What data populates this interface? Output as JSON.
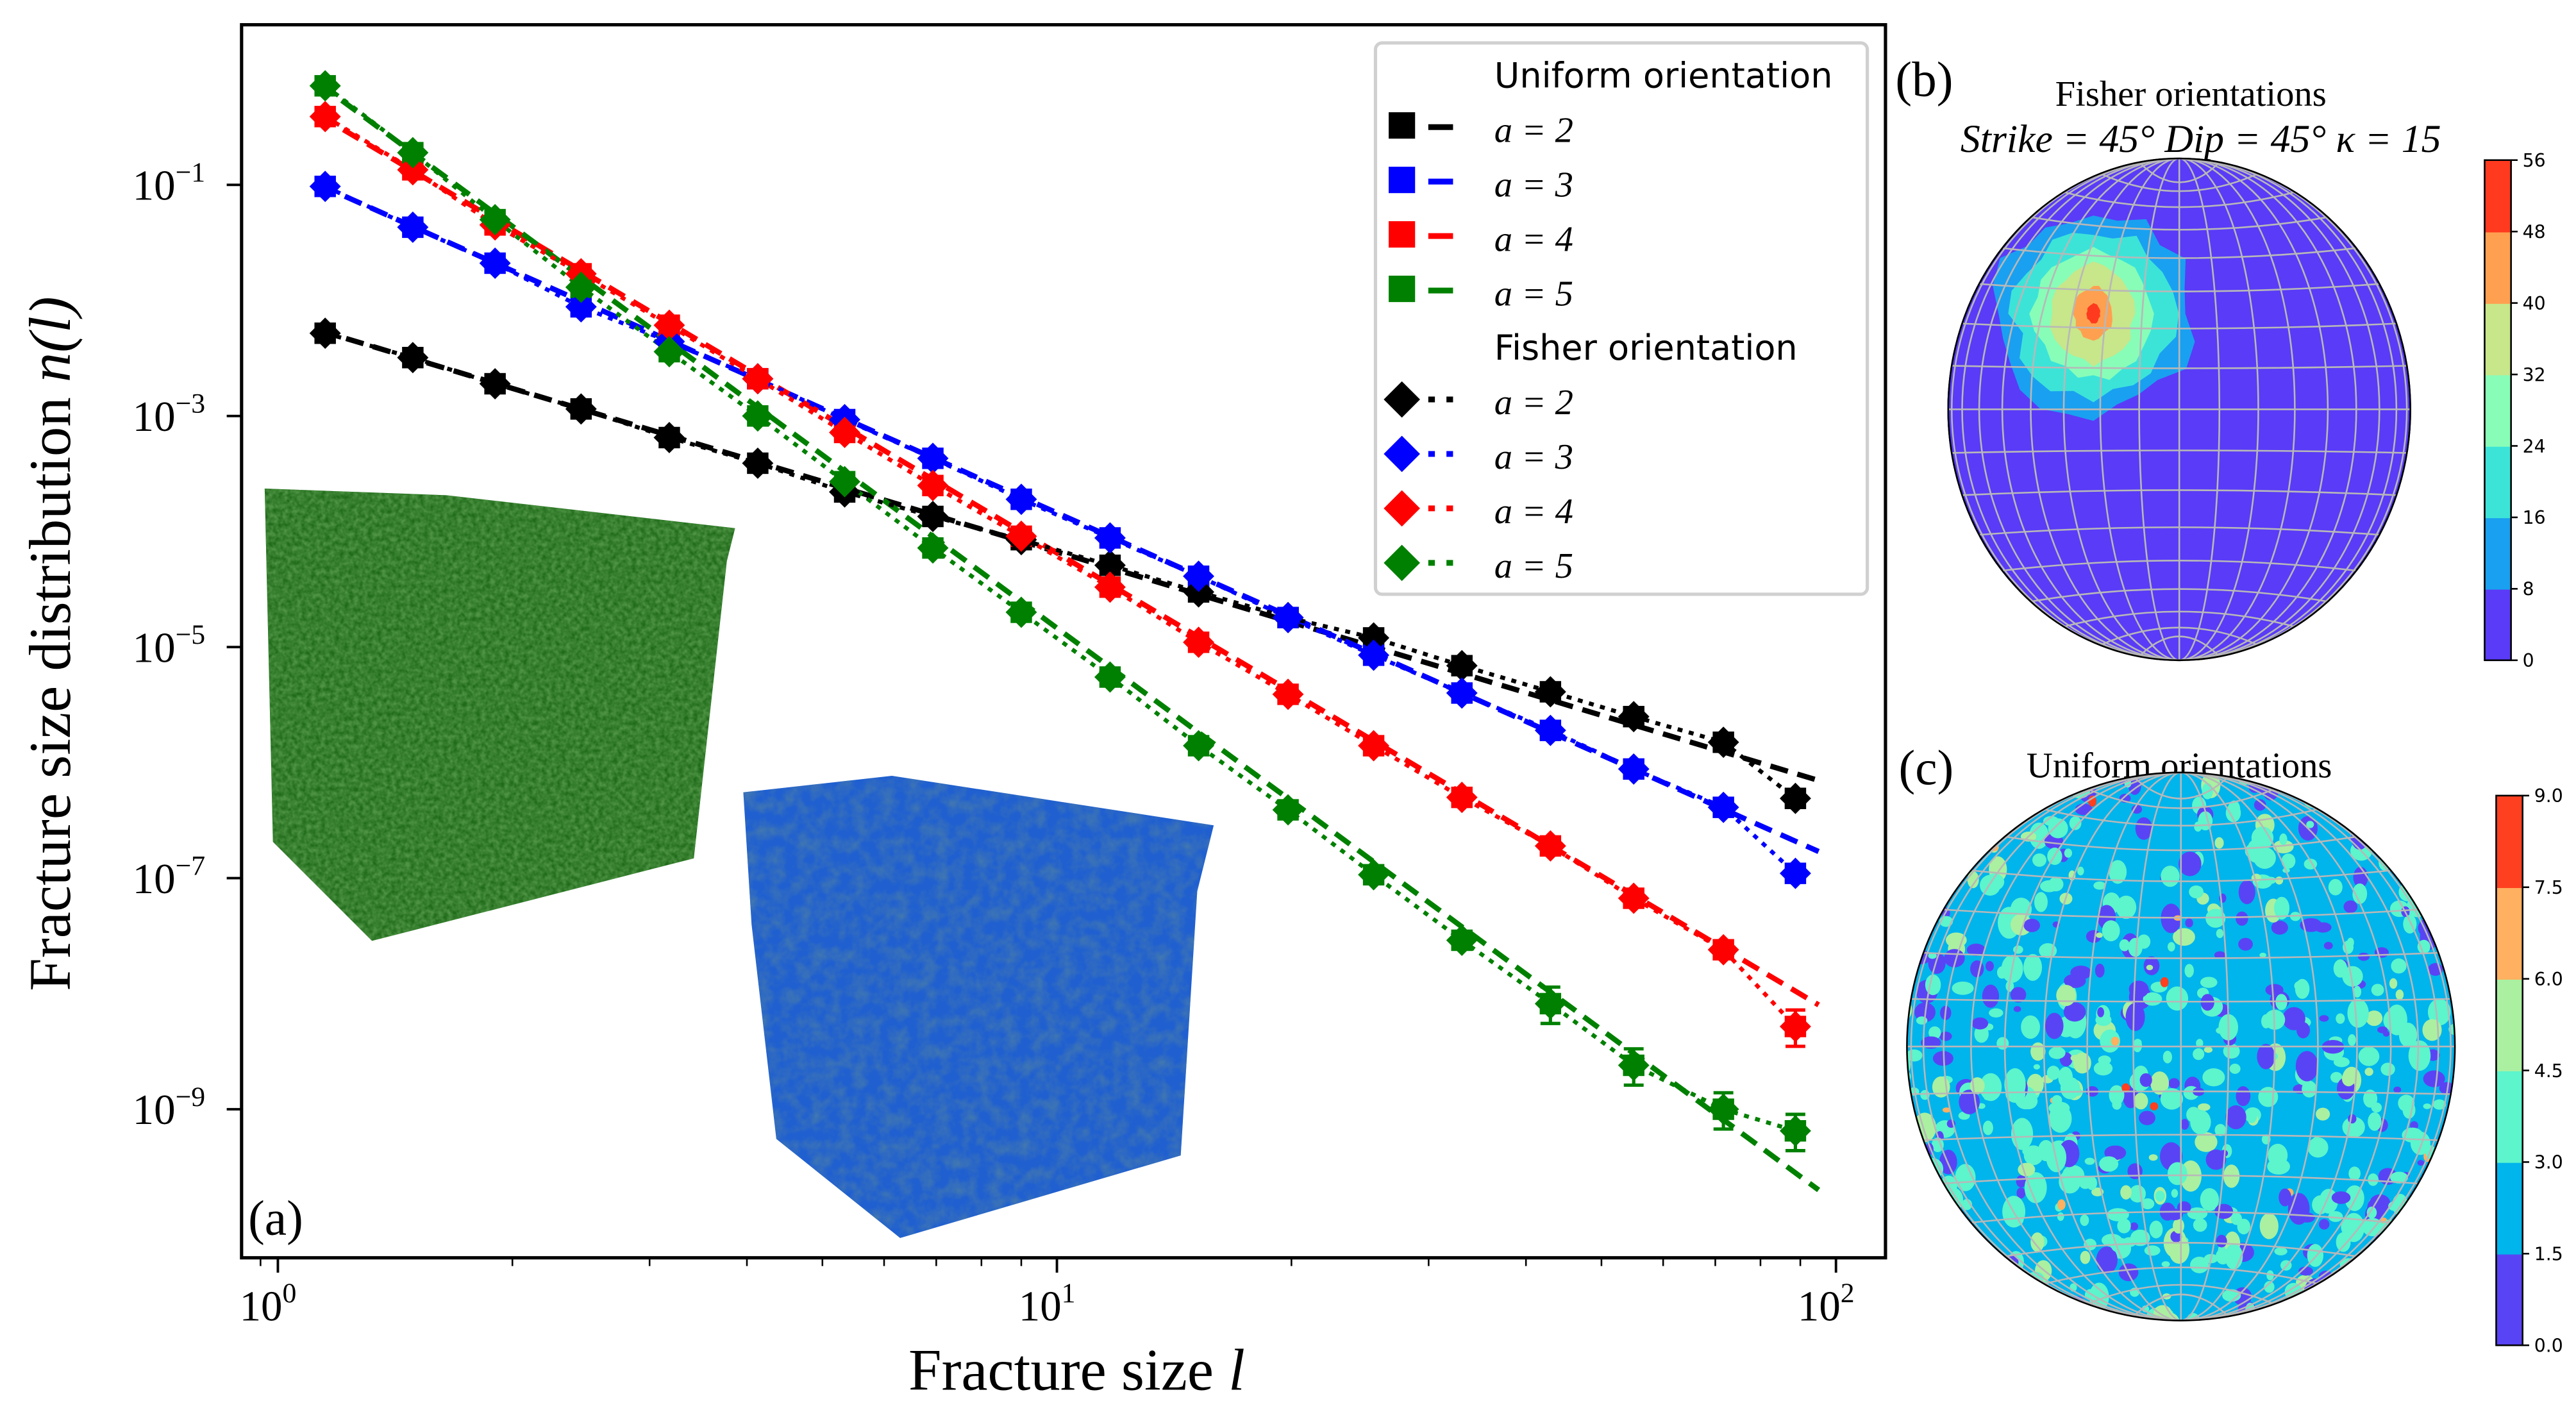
{
  "chart_data": [
    {
      "panel_label": "(a)",
      "type": "scatter",
      "xlabel": "Fracture size",
      "xlabel_var": "l",
      "ylabel": "Fracture size distribution",
      "ylabel_var": "n(l)",
      "xscale": "log",
      "yscale": "log",
      "xlim": [
        0.92,
        113
      ],
      "ylim": [
        5e-11,
        2.4
      ],
      "x_ticks": [
        {
          "base": "10",
          "exp": "0",
          "value": 1
        },
        {
          "base": "10",
          "exp": "1",
          "value": 10
        },
        {
          "base": "10",
          "exp": "2",
          "value": 100
        }
      ],
      "y_ticks": [
        {
          "base": "10",
          "exp": "−1",
          "value": 0.1
        },
        {
          "base": "10",
          "exp": "−3",
          "value": 0.001
        },
        {
          "base": "10",
          "exp": "−5",
          "value": 1e-05
        },
        {
          "base": "10",
          "exp": "−7",
          "value": 1e-07
        },
        {
          "base": "10",
          "exp": "−9",
          "value": 1e-09
        }
      ],
      "grid": false,
      "legend_placement": "top-right",
      "x": [
        1.15,
        1.49,
        1.9,
        2.45,
        3.18,
        4.13,
        5.34,
        6.93,
        9.0,
        11.7,
        15.2,
        19.8,
        25.5,
        33.1,
        43,
        55,
        71.7,
        88.7
      ],
      "groups": [
        {
          "title": "Uniform orientation",
          "marker": "square",
          "line": "dashed",
          "series": [
            {
              "name": "a = 2",
              "color": "#000000",
              "values": [
                0.0052,
                0.0032,
                0.0019,
                0.00115,
                0.00065,
                0.00039,
                0.00022,
                0.000135,
                8.5e-05,
                5.1e-05,
                3e-05,
                1.8e-05,
                1.2e-05,
                6.9e-06,
                4.1e-06,
                2.5e-06,
                1.5e-06,
                4.9e-07
              ],
              "fit": {
                "x": [
                  1.13,
                  95
                ],
                "y": [
                  0.0055,
                  7e-07
                ]
              }
            },
            {
              "name": "a = 3",
              "color": "#0000ff",
              "values": [
                0.097,
                0.043,
                0.021,
                0.0088,
                0.0044,
                0.0021,
                0.00093,
                0.00043,
                0.00019,
                8.8e-05,
                4.1e-05,
                1.8e-05,
                8.5e-06,
                4e-06,
                1.9e-06,
                8.8e-07,
                4.1e-07,
                1.1e-07
              ],
              "fit": {
                "x": [
                  1.13,
                  95
                ],
                "y": [
                  0.1,
                  1.7e-07
                ]
              }
            },
            {
              "name": "a = 4",
              "color": "#ff0000",
              "values": [
                0.39,
                0.135,
                0.045,
                0.017,
                0.0061,
                0.0021,
                0.00072,
                0.00025,
                9.1e-05,
                3.3e-05,
                1.1e-05,
                3.9e-06,
                1.4e-06,
                5e-07,
                1.9e-07,
                6.7e-08,
                2.4e-08,
                5.2e-09
              ],
              "fit": {
                "x": [
                  1.13,
                  95
                ],
                "y": [
                  0.4,
                  8e-09
                ]
              }
            },
            {
              "name": "a = 5",
              "color": "#008000",
              "values": [
                0.72,
                0.19,
                0.05,
                0.013,
                0.0036,
                0.001,
                0.00027,
                7.2e-05,
                2e-05,
                5.5e-06,
                1.4e-06,
                3.9e-07,
                1.07e-07,
                2.9e-08,
                8.2e-09,
                2.4e-09,
                1e-09,
                6.5e-10
              ],
              "fit": {
                "x": [
                  1.13,
                  95
                ],
                "y": [
                  0.75,
                  2e-10
                ]
              }
            }
          ]
        },
        {
          "title": "Fisher orientation",
          "marker": "diamond",
          "line": "dotted",
          "series": [
            {
              "name": "a = 2",
              "color": "#000000",
              "values": [
                0.0052,
                0.0032,
                0.0019,
                0.00115,
                0.00065,
                0.00039,
                0.00022,
                0.000135,
                8.5e-05,
                5.1e-05,
                3e-05,
                1.8e-05,
                1.2e-05,
                6.9e-06,
                4.1e-06,
                2.5e-06,
                1.5e-06,
                4.9e-07
              ]
            },
            {
              "name": "a = 3",
              "color": "#0000ff",
              "values": [
                0.097,
                0.043,
                0.021,
                0.0088,
                0.0044,
                0.0021,
                0.00093,
                0.00043,
                0.00019,
                8.8e-05,
                4.1e-05,
                1.8e-05,
                8.5e-06,
                4e-06,
                1.9e-06,
                8.8e-07,
                4.1e-07,
                1.1e-07
              ]
            },
            {
              "name": "a = 4",
              "color": "#ff0000",
              "values": [
                0.39,
                0.135,
                0.045,
                0.017,
                0.0061,
                0.0021,
                0.00072,
                0.00025,
                9.1e-05,
                3.3e-05,
                1.1e-05,
                3.9e-06,
                1.4e-06,
                5e-07,
                1.9e-07,
                6.7e-08,
                2.4e-08,
                5.2e-09
              ]
            },
            {
              "name": "a = 5",
              "color": "#008000",
              "values": [
                0.72,
                0.19,
                0.05,
                0.013,
                0.0036,
                0.001,
                0.00027,
                7.2e-05,
                2e-05,
                5.5e-06,
                1.4e-06,
                3.9e-07,
                1.07e-07,
                2.9e-08,
                8.2e-09,
                2.4e-09,
                1e-09,
                6.5e-10
              ]
            }
          ]
        }
      ],
      "insets": [
        {
          "name": "green-fracture-cube",
          "color": "#1f6b1a"
        },
        {
          "name": "blue-fracture-cube",
          "color": "#1f5fd0"
        }
      ]
    },
    {
      "panel_label": "(b)",
      "type": "heatmap",
      "title": "Fisher orientations",
      "subtitle": "Strike = 45° Dip = 45° κ = 15",
      "projection": "stereonet",
      "colorbar_ticks": [
        "0",
        "8",
        "16",
        "24",
        "32",
        "40",
        "48",
        "56"
      ],
      "colorbar_colors": [
        "#5a3bf7",
        "#1aa0f0",
        "#3ce4d8",
        "#88fdb8",
        "#c8e68a",
        "#ffa050",
        "#ff3a1e"
      ]
    },
    {
      "panel_label": "(c)",
      "type": "heatmap",
      "title": "Uniform orientations",
      "projection": "stereonet",
      "colorbar_ticks": [
        "0.0",
        "1.5",
        "3.0",
        "4.5",
        "6.0",
        "7.5",
        "9.0"
      ],
      "colorbar_colors": [
        "#5944f5",
        "#00b4ec",
        "#5cf5cc",
        "#aaf0a0",
        "#ffb060",
        "#ff4020"
      ]
    }
  ]
}
